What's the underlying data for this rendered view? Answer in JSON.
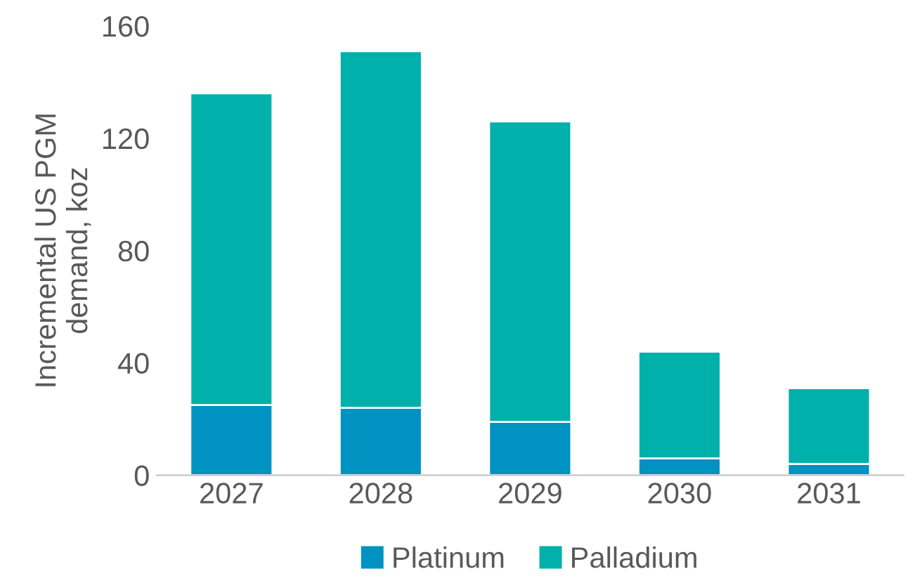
{
  "chart_data": {
    "type": "bar",
    "stacked": true,
    "ylabel": "Incremental US PGM\ndemand, koz",
    "categories": [
      "2027",
      "2028",
      "2029",
      "2030",
      "2031"
    ],
    "series": [
      {
        "name": "Platinum",
        "color": "#0092c1",
        "values": [
          25,
          24,
          19,
          6,
          4
        ]
      },
      {
        "name": "Palladium",
        "color": "#00b0aa",
        "values": [
          111,
          127,
          107,
          38,
          27
        ]
      }
    ],
    "ylim": [
      0,
      160
    ],
    "yticks": [
      0,
      40,
      80,
      120,
      160
    ],
    "grid": false,
    "legend": "bottom"
  }
}
